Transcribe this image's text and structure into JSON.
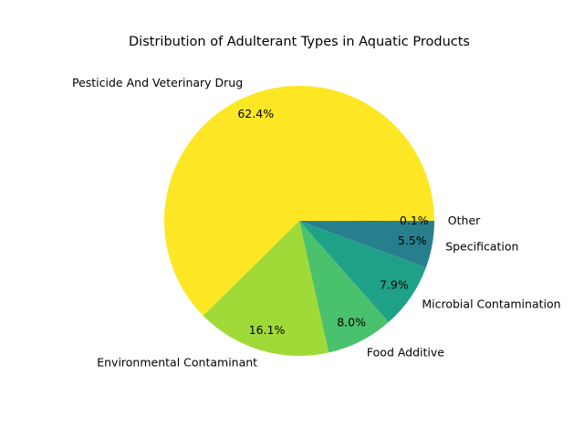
{
  "chart_data": {
    "type": "pie",
    "title": "Distribution of Adulterant Types in Aquatic Products",
    "start_angle_deg": 0,
    "direction": "counterclockwise",
    "slices": [
      {
        "label": "Pesticide And Veterinary Drug",
        "value": 62.4,
        "pct_label": "62.4%",
        "color": "#fde725"
      },
      {
        "label": "Environmental Contaminant",
        "value": 16.1,
        "pct_label": "16.1%",
        "color": "#a0da39"
      },
      {
        "label": "Food Additive",
        "value": 8.0,
        "pct_label": "8.0%",
        "color": "#4ac16d"
      },
      {
        "label": "Microbial Contamination",
        "value": 7.9,
        "pct_label": "7.9%",
        "color": "#1fa187"
      },
      {
        "label": "Specification",
        "value": 5.5,
        "pct_label": "5.5%",
        "color": "#277f8e"
      },
      {
        "label": "Other",
        "value": 0.1,
        "pct_label": "0.1%",
        "color": "#365c8d"
      }
    ]
  }
}
